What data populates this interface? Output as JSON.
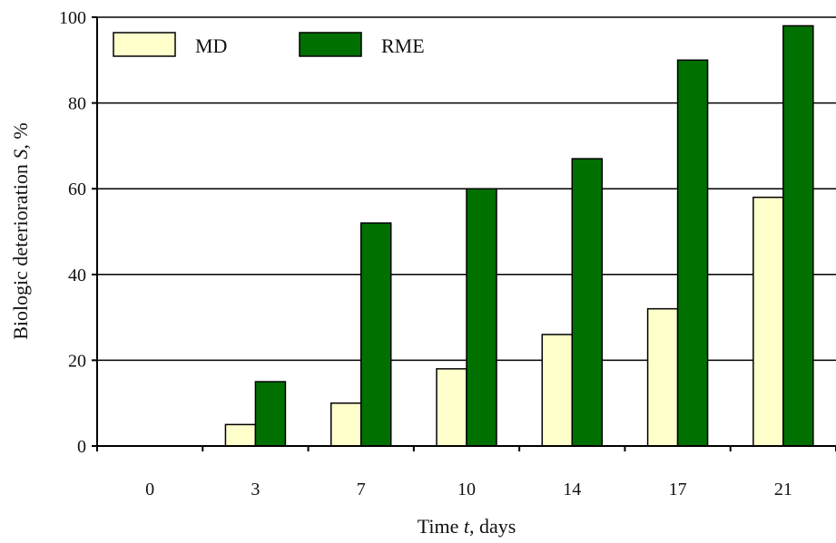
{
  "chart_data": {
    "type": "bar",
    "title": "",
    "xlabel": {
      "prefix": "Time ",
      "var": "t",
      "suffix": ", days"
    },
    "ylabel": {
      "prefix": "Biologic deterioration ",
      "var": "S",
      "suffix": ", %"
    },
    "categories": [
      "0",
      "3",
      "7",
      "10",
      "14",
      "17",
      "21"
    ],
    "series": [
      {
        "name": "MD",
        "color": "#ffffcc",
        "values": [
          0,
          5,
          10,
          18,
          26,
          32,
          58
        ]
      },
      {
        "name": "RME",
        "color": "#007000",
        "values": [
          0,
          15,
          52,
          60,
          67,
          90,
          98
        ]
      }
    ],
    "ylim": [
      0,
      100
    ],
    "yticks": [
      0,
      20,
      40,
      60,
      80,
      100
    ],
    "grid": true,
    "legend_position": "top-left"
  }
}
